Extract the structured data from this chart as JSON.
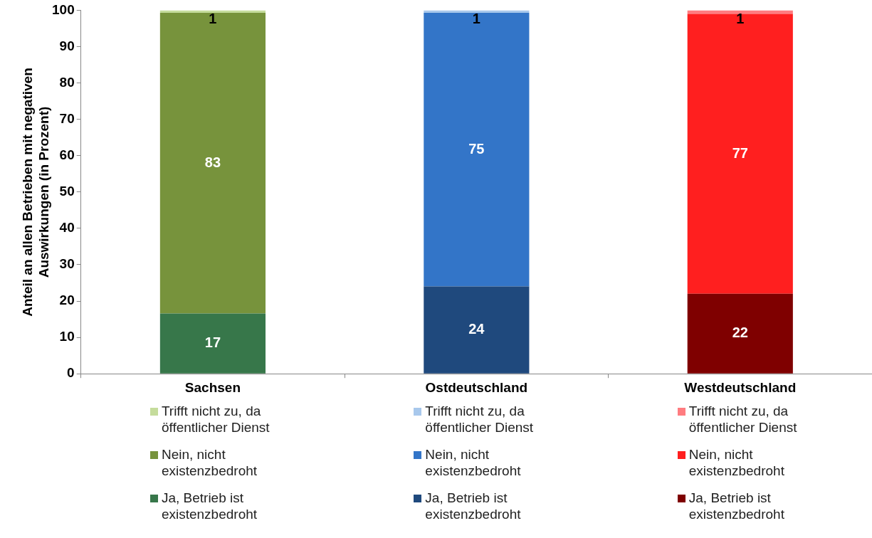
{
  "chart_data": {
    "type": "bar",
    "stacked": true,
    "ylabel": "Anteil an allen Betrieben mit negativen Auswirkungen (in Prozent)",
    "categories": [
      "Sachsen",
      "Ostdeutschland",
      "Westdeutschland"
    ],
    "ylim": [
      0,
      100
    ],
    "yticks": [
      0,
      10,
      20,
      30,
      40,
      50,
      60,
      70,
      80,
      90,
      100
    ],
    "grid": false,
    "legend": "bottom",
    "series": [
      {
        "name": "Ja, Betrieb ist existenzbedroht",
        "color": "#37774a",
        "values": [
          16.6,
          null,
          null
        ],
        "value_labels": [
          "17",
          null,
          null
        ]
      },
      {
        "name": "Nein, nicht existenzbedroht",
        "color": "#77933c",
        "values": [
          82.7,
          null,
          null
        ],
        "value_labels": [
          "83",
          null,
          null
        ]
      },
      {
        "name": "Trifft nicht zu, da öffentlicher Dienst",
        "color": "#c5dc9c",
        "values": [
          0.7,
          null,
          null
        ],
        "value_labels": [
          "1",
          null,
          null
        ]
      },
      {
        "name": "Ja, Betrieb ist existenzbedroht",
        "color": "#1f497d",
        "values": [
          null,
          24,
          null
        ],
        "value_labels": [
          null,
          "24",
          null
        ]
      },
      {
        "name": "Nein, nicht existenzbedroht",
        "color": "#3375c8",
        "values": [
          null,
          75.3,
          null
        ],
        "value_labels": [
          null,
          "75",
          null
        ]
      },
      {
        "name": "Trifft nicht zu, da öffentlicher Dienst",
        "color": "#a8c8ec",
        "values": [
          null,
          0.7,
          null
        ],
        "value_labels": [
          null,
          "1",
          null
        ]
      },
      {
        "name": "Ja, Betrieb ist existenzbedroht",
        "color": "#7f0000",
        "values": [
          null,
          null,
          22
        ],
        "value_labels": [
          null,
          null,
          "22"
        ]
      },
      {
        "name": "Nein, nicht existenzbedroht",
        "color": "#ff1f1f",
        "values": [
          null,
          null,
          77
        ],
        "value_labels": [
          null,
          null,
          "77"
        ]
      },
      {
        "name": "Trifft nicht zu, da öffentlicher Dienst",
        "color": "#ff7c80",
        "values": [
          null,
          null,
          1
        ],
        "value_labels": [
          null,
          null,
          "1"
        ]
      }
    ]
  }
}
